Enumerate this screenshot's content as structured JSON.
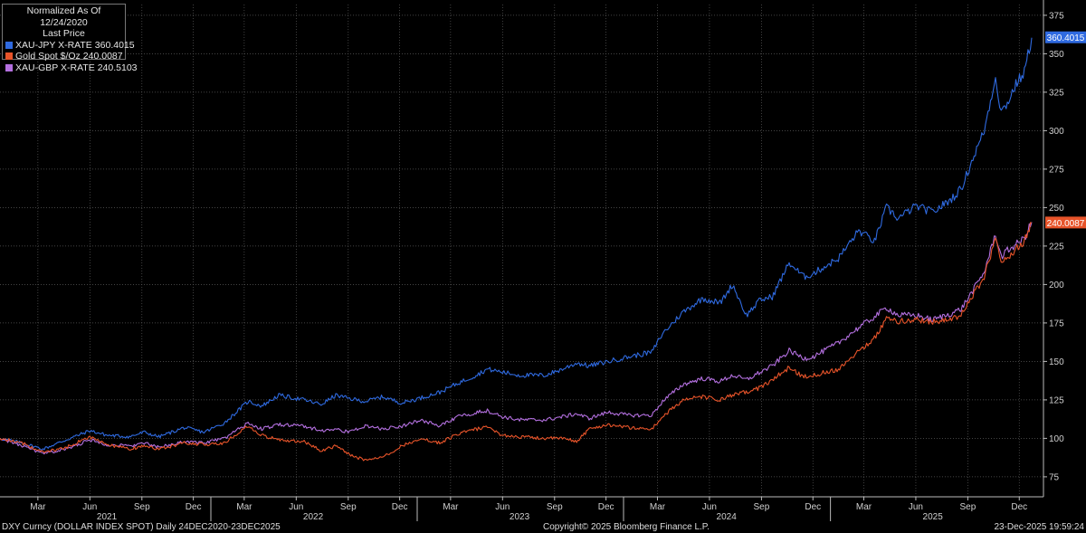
{
  "legend": {
    "title_line1": "Normalized As Of 12/24/2020",
    "title_line2": "Last Price",
    "entries": [
      {
        "label": "XAU-JPY X-RATE",
        "value": "360.4015",
        "color": "#2f6ae0"
      },
      {
        "label": "Gold Spot $/Oz",
        "value": "240.0087",
        "color": "#e8542a"
      },
      {
        "label": "XAU-GBP X-RATE",
        "value": "240.5103",
        "color": "#b470e0"
      }
    ]
  },
  "footer": {
    "left": "DXY Curncy (DOLLAR INDEX SPOT) Daily 24DEC2020-23DEC2025",
    "center": "Copyright© 2025 Bloomberg Finance L.P.",
    "right": "23-Dec-2025 19:59:24"
  },
  "chart_data": {
    "type": "line",
    "ylim": [
      62,
      382
    ],
    "yticks": [
      75,
      100,
      125,
      150,
      175,
      200,
      225,
      250,
      275,
      300,
      325,
      350,
      375
    ],
    "xlim": [
      "2020-12-24",
      "2025-12-23"
    ],
    "month_ticks": [
      {
        "label": "Mar",
        "date": "2021-03-01"
      },
      {
        "label": "Jun",
        "date": "2021-06-01"
      },
      {
        "label": "Sep",
        "date": "2021-09-01"
      },
      {
        "label": "Dec",
        "date": "2021-12-01"
      },
      {
        "label": "Mar",
        "date": "2022-03-01"
      },
      {
        "label": "Jun",
        "date": "2022-06-01"
      },
      {
        "label": "Sep",
        "date": "2022-09-01"
      },
      {
        "label": "Dec",
        "date": "2022-12-01"
      },
      {
        "label": "Mar",
        "date": "2023-03-01"
      },
      {
        "label": "Jun",
        "date": "2023-06-01"
      },
      {
        "label": "Sep",
        "date": "2023-09-01"
      },
      {
        "label": "Dec",
        "date": "2023-12-01"
      },
      {
        "label": "Mar",
        "date": "2024-03-01"
      },
      {
        "label": "Jun",
        "date": "2024-06-01"
      },
      {
        "label": "Sep",
        "date": "2024-09-01"
      },
      {
        "label": "Dec",
        "date": "2024-12-01"
      },
      {
        "label": "Mar",
        "date": "2025-03-01"
      },
      {
        "label": "Jun",
        "date": "2025-06-01"
      },
      {
        "label": "Sep",
        "date": "2025-09-01"
      },
      {
        "label": "Dec",
        "date": "2025-12-01"
      }
    ],
    "year_ticks": [
      {
        "label": "2021",
        "date": "2021-07-01"
      },
      {
        "label": "2022",
        "date": "2022-07-01"
      },
      {
        "label": "2023",
        "date": "2023-07-01"
      },
      {
        "label": "2024",
        "date": "2024-07-01"
      },
      {
        "label": "2025",
        "date": "2025-07-01"
      }
    ],
    "year_boundaries": [
      "2022-01-01",
      "2023-01-01",
      "2024-01-01",
      "2025-01-01"
    ],
    "series": [
      {
        "name": "XAU-JPY X-RATE",
        "color": "#2f6ae0",
        "last_label": "360.4015",
        "points": [
          [
            "2020-12-24",
            100
          ],
          [
            "2021-02-01",
            97
          ],
          [
            "2021-03-10",
            93
          ],
          [
            "2021-04-20",
            99
          ],
          [
            "2021-06-01",
            105
          ],
          [
            "2021-07-01",
            102
          ],
          [
            "2021-08-10",
            101
          ],
          [
            "2021-09-05",
            104
          ],
          [
            "2021-10-01",
            101
          ],
          [
            "2021-11-15",
            107
          ],
          [
            "2021-12-20",
            104
          ],
          [
            "2022-01-25",
            110
          ],
          [
            "2022-03-08",
            124
          ],
          [
            "2022-04-01",
            121
          ],
          [
            "2022-05-01",
            128
          ],
          [
            "2022-06-15",
            125
          ],
          [
            "2022-07-15",
            122
          ],
          [
            "2022-08-10",
            128
          ],
          [
            "2022-09-01",
            126
          ],
          [
            "2022-10-01",
            124
          ],
          [
            "2022-11-01",
            127
          ],
          [
            "2022-12-05",
            123
          ],
          [
            "2023-01-05",
            126
          ],
          [
            "2023-02-10",
            130
          ],
          [
            "2023-03-15",
            136
          ],
          [
            "2023-04-15",
            141
          ],
          [
            "2023-05-05",
            145
          ],
          [
            "2023-06-01",
            143
          ],
          [
            "2023-07-01",
            141
          ],
          [
            "2023-08-15",
            141
          ],
          [
            "2023-09-15",
            145
          ],
          [
            "2023-10-10",
            149
          ],
          [
            "2023-11-01",
            147
          ],
          [
            "2023-12-05",
            150
          ],
          [
            "2024-01-10",
            153
          ],
          [
            "2024-02-20",
            156
          ],
          [
            "2024-03-10",
            168
          ],
          [
            "2024-04-15",
            182
          ],
          [
            "2024-05-20",
            191
          ],
          [
            "2024-06-20",
            188
          ],
          [
            "2024-07-12",
            200
          ],
          [
            "2024-08-05",
            180
          ],
          [
            "2024-08-30",
            190
          ],
          [
            "2024-09-20",
            192
          ],
          [
            "2024-10-20",
            214
          ],
          [
            "2024-11-15",
            205
          ],
          [
            "2024-12-01",
            207
          ],
          [
            "2025-01-15",
            217
          ],
          [
            "2025-02-20",
            235
          ],
          [
            "2025-03-20",
            228
          ],
          [
            "2025-04-10",
            250
          ],
          [
            "2025-05-01",
            243
          ],
          [
            "2025-06-01",
            251
          ],
          [
            "2025-07-01",
            247
          ],
          [
            "2025-08-01",
            255
          ],
          [
            "2025-08-20",
            262
          ],
          [
            "2025-09-10",
            282
          ],
          [
            "2025-09-30",
            300
          ],
          [
            "2025-10-20",
            335
          ],
          [
            "2025-10-30",
            312
          ],
          [
            "2025-11-10",
            318
          ],
          [
            "2025-11-25",
            330
          ],
          [
            "2025-12-10",
            338
          ],
          [
            "2025-12-23",
            360.4015
          ]
        ]
      },
      {
        "name": "XAU-GBP X-RATE",
        "color": "#b470e0",
        "last_label": "",
        "points": [
          [
            "2020-12-24",
            100
          ],
          [
            "2021-02-01",
            95
          ],
          [
            "2021-03-10",
            90
          ],
          [
            "2021-04-20",
            93
          ],
          [
            "2021-06-01",
            99
          ],
          [
            "2021-07-01",
            96
          ],
          [
            "2021-08-10",
            95
          ],
          [
            "2021-09-05",
            97
          ],
          [
            "2021-10-01",
            94
          ],
          [
            "2021-11-15",
            98
          ],
          [
            "2021-12-20",
            97
          ],
          [
            "2022-01-25",
            100
          ],
          [
            "2022-03-08",
            110
          ],
          [
            "2022-04-01",
            106
          ],
          [
            "2022-05-01",
            109
          ],
          [
            "2022-06-15",
            108
          ],
          [
            "2022-07-15",
            105
          ],
          [
            "2022-08-10",
            106
          ],
          [
            "2022-09-01",
            104
          ],
          [
            "2022-10-01",
            108
          ],
          [
            "2022-11-01",
            106
          ],
          [
            "2022-12-05",
            108
          ],
          [
            "2023-01-05",
            112
          ],
          [
            "2023-02-10",
            108
          ],
          [
            "2023-03-15",
            114
          ],
          [
            "2023-04-15",
            117
          ],
          [
            "2023-05-05",
            118
          ],
          [
            "2023-06-01",
            114
          ],
          [
            "2023-07-01",
            112
          ],
          [
            "2023-08-15",
            112
          ],
          [
            "2023-09-15",
            114
          ],
          [
            "2023-10-10",
            116
          ],
          [
            "2023-11-01",
            113
          ],
          [
            "2023-12-05",
            117
          ],
          [
            "2024-01-10",
            115
          ],
          [
            "2024-02-20",
            115
          ],
          [
            "2024-03-10",
            124
          ],
          [
            "2024-04-15",
            135
          ],
          [
            "2024-05-20",
            139
          ],
          [
            "2024-06-20",
            137
          ],
          [
            "2024-07-12",
            141
          ],
          [
            "2024-08-05",
            138
          ],
          [
            "2024-08-30",
            143
          ],
          [
            "2024-09-20",
            147
          ],
          [
            "2024-10-20",
            157
          ],
          [
            "2024-11-15",
            152
          ],
          [
            "2024-12-01",
            153
          ],
          [
            "2025-01-15",
            162
          ],
          [
            "2025-02-20",
            172
          ],
          [
            "2025-03-20",
            179
          ],
          [
            "2025-04-10",
            185
          ],
          [
            "2025-05-01",
            180
          ],
          [
            "2025-06-01",
            180
          ],
          [
            "2025-07-01",
            177
          ],
          [
            "2025-08-01",
            181
          ],
          [
            "2025-08-20",
            184
          ],
          [
            "2025-09-10",
            196
          ],
          [
            "2025-09-30",
            208
          ],
          [
            "2025-10-20",
            233
          ],
          [
            "2025-10-30",
            218
          ],
          [
            "2025-11-10",
            222
          ],
          [
            "2025-11-25",
            226
          ],
          [
            "2025-12-10",
            230
          ],
          [
            "2025-12-23",
            240.5103
          ]
        ]
      },
      {
        "name": "Gold Spot $/Oz",
        "color": "#e8542a",
        "last_label": "240.0087",
        "points": [
          [
            "2020-12-24",
            100
          ],
          [
            "2021-02-01",
            97
          ],
          [
            "2021-03-10",
            91
          ],
          [
            "2021-04-20",
            94
          ],
          [
            "2021-06-01",
            101
          ],
          [
            "2021-07-01",
            96
          ],
          [
            "2021-08-10",
            93
          ],
          [
            "2021-09-05",
            95
          ],
          [
            "2021-10-01",
            93
          ],
          [
            "2021-11-15",
            97
          ],
          [
            "2021-12-20",
            96
          ],
          [
            "2022-01-25",
            97
          ],
          [
            "2022-03-08",
            108
          ],
          [
            "2022-04-01",
            102
          ],
          [
            "2022-05-01",
            99
          ],
          [
            "2022-06-15",
            98
          ],
          [
            "2022-07-15",
            92
          ],
          [
            "2022-08-10",
            95
          ],
          [
            "2022-09-01",
            90
          ],
          [
            "2022-09-28",
            86
          ],
          [
            "2022-11-01",
            88
          ],
          [
            "2022-12-05",
            95
          ],
          [
            "2023-01-05",
            100
          ],
          [
            "2023-02-10",
            97
          ],
          [
            "2023-03-15",
            103
          ],
          [
            "2023-04-15",
            106
          ],
          [
            "2023-05-05",
            107
          ],
          [
            "2023-06-01",
            102
          ],
          [
            "2023-07-01",
            101
          ],
          [
            "2023-08-15",
            100
          ],
          [
            "2023-09-15",
            100
          ],
          [
            "2023-10-10",
            98
          ],
          [
            "2023-11-01",
            106
          ],
          [
            "2023-12-05",
            109
          ],
          [
            "2024-01-10",
            107
          ],
          [
            "2024-02-20",
            106
          ],
          [
            "2024-03-10",
            114
          ],
          [
            "2024-04-15",
            125
          ],
          [
            "2024-05-20",
            127
          ],
          [
            "2024-06-20",
            125
          ],
          [
            "2024-07-12",
            128
          ],
          [
            "2024-08-05",
            130
          ],
          [
            "2024-08-30",
            133
          ],
          [
            "2024-09-20",
            138
          ],
          [
            "2024-10-20",
            146
          ],
          [
            "2024-11-15",
            140
          ],
          [
            "2024-12-01",
            141
          ],
          [
            "2025-01-15",
            145
          ],
          [
            "2025-02-20",
            157
          ],
          [
            "2025-03-20",
            165
          ],
          [
            "2025-04-10",
            178
          ],
          [
            "2025-05-01",
            176
          ],
          [
            "2025-06-01",
            177
          ],
          [
            "2025-07-01",
            176
          ],
          [
            "2025-08-01",
            177
          ],
          [
            "2025-08-20",
            180
          ],
          [
            "2025-09-10",
            193
          ],
          [
            "2025-09-30",
            205
          ],
          [
            "2025-10-20",
            230
          ],
          [
            "2025-10-30",
            213
          ],
          [
            "2025-11-10",
            218
          ],
          [
            "2025-11-25",
            223
          ],
          [
            "2025-12-10",
            228
          ],
          [
            "2025-12-23",
            240.0087
          ]
        ]
      }
    ]
  }
}
